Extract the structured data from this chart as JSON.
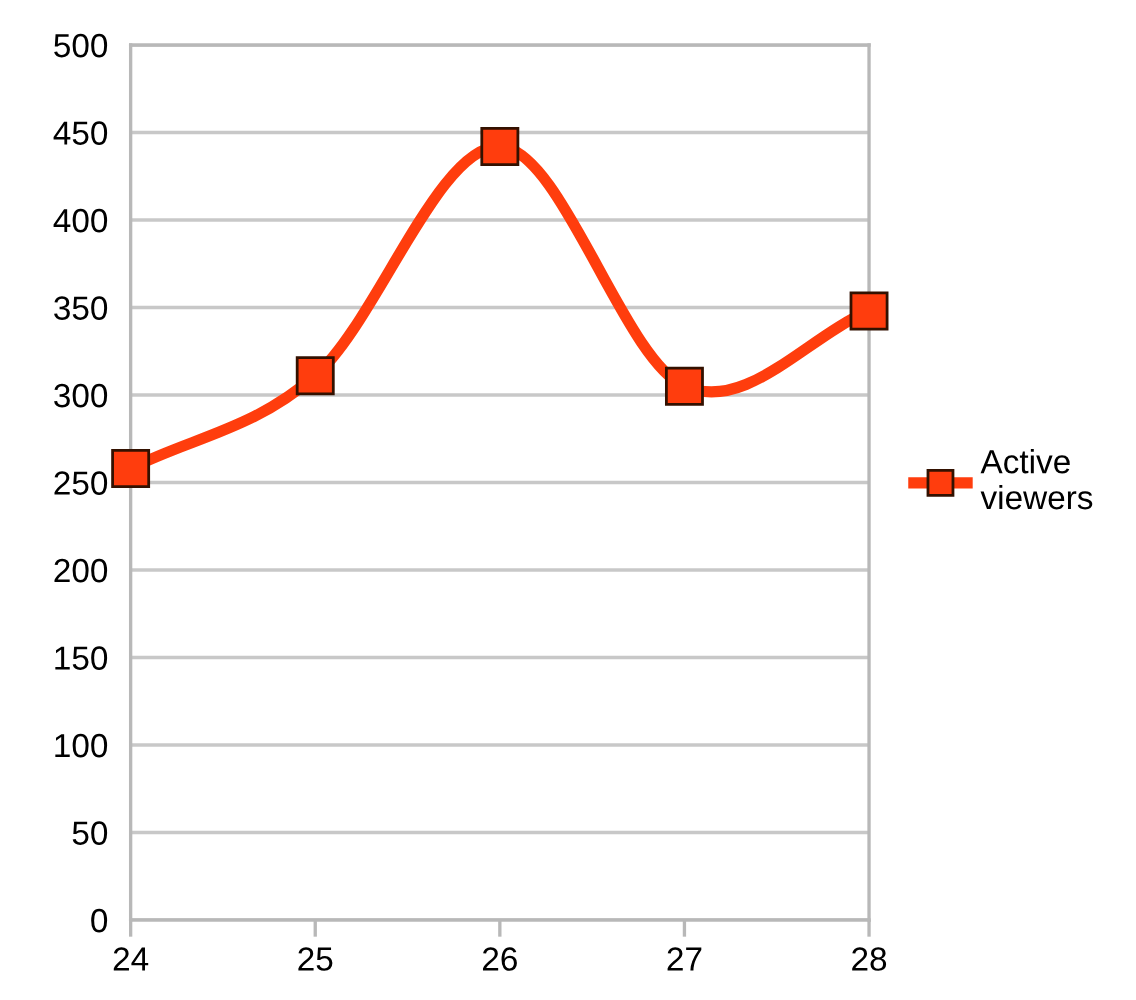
{
  "chart_data": {
    "type": "line",
    "x": [
      24,
      25,
      26,
      27,
      28
    ],
    "series": [
      {
        "name": "Active viewers",
        "color": "#ff3d0d",
        "values": [
          258,
          311,
          442,
          305,
          348
        ]
      }
    ],
    "xlim": [
      24,
      28
    ],
    "xticks": [
      24,
      25,
      26,
      27,
      28
    ],
    "ylim": [
      0,
      500
    ],
    "yticks": [
      0,
      50,
      100,
      150,
      200,
      250,
      300,
      350,
      400,
      450,
      500
    ],
    "grid": "y",
    "legend": "right",
    "marker": "square",
    "line_style": "solid"
  }
}
